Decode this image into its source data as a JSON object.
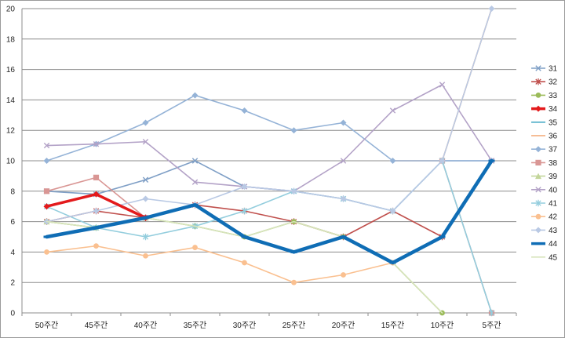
{
  "chart_data": {
    "type": "line",
    "title": "",
    "xlabel": "",
    "ylabel": "",
    "ylim": [
      0,
      20
    ],
    "yticks": [
      0,
      2,
      4,
      6,
      8,
      10,
      12,
      14,
      16,
      18,
      20
    ],
    "grid": true,
    "legend_position": "right",
    "categories": [
      "50주간",
      "45주간",
      "40주간",
      "35주간",
      "30주간",
      "25주간",
      "20주간",
      "15주간",
      "10주간",
      "5주간"
    ],
    "series": [
      {
        "name": "31",
        "color": "#7f9fc6",
        "marker": "x",
        "values": [
          8,
          7.8,
          8.75,
          10,
          8.3,
          8,
          7.5,
          6.7,
          10,
          10
        ]
      },
      {
        "name": "32",
        "color": "#c0504d",
        "marker": "star",
        "values": [
          6,
          6.7,
          6.25,
          7.1,
          6.7,
          6,
          5,
          6.7,
          5,
          null
        ]
      },
      {
        "name": "33",
        "color": "#9bbb59",
        "marker": "circle",
        "values": [
          6,
          5.6,
          6.25,
          5.7,
          5,
          6,
          5,
          3.3,
          0,
          null
        ]
      },
      {
        "name": "34",
        "color": "#e31a1c",
        "marker": "diamond",
        "width": 3.5,
        "values": [
          7,
          7.8,
          6.25,
          null,
          null,
          null,
          null,
          null,
          null,
          null
        ]
      },
      {
        "name": "35",
        "color": "#4bacc6",
        "marker": "none",
        "values": [
          5,
          5.6,
          6.25,
          7.1,
          5,
          4,
          5,
          3.3,
          null,
          null
        ]
      },
      {
        "name": "36",
        "color": "#f3a774",
        "marker": "none",
        "values": [
          null,
          null,
          null,
          null,
          null,
          null,
          null,
          10,
          10,
          20
        ]
      },
      {
        "name": "37",
        "color": "#95b3d7",
        "marker": "diamond",
        "values": [
          10,
          11.1,
          12.5,
          14.3,
          13.3,
          12,
          12.5,
          10,
          10,
          10
        ]
      },
      {
        "name": "38",
        "color": "#d99694",
        "marker": "square",
        "values": [
          8,
          8.9,
          6.25,
          null,
          null,
          null,
          null,
          null,
          10,
          0
        ]
      },
      {
        "name": "39",
        "color": "#c3d69b",
        "marker": "triangle",
        "values": [
          6,
          5.6,
          6.25,
          null,
          null,
          null,
          null,
          null,
          null,
          null
        ]
      },
      {
        "name": "40",
        "color": "#b3a2c7",
        "marker": "x",
        "values": [
          11,
          11.1,
          11.25,
          8.6,
          8.3,
          8,
          10,
          13.3,
          15,
          10
        ]
      },
      {
        "name": "41",
        "color": "#93cddd",
        "marker": "star",
        "values": [
          7,
          5.6,
          5,
          5.7,
          6.7,
          8,
          7.5,
          6.7,
          10,
          0
        ]
      },
      {
        "name": "42",
        "color": "#fac090",
        "marker": "circle",
        "values": [
          4,
          4.4,
          3.75,
          4.3,
          3.3,
          2,
          2.5,
          3.3,
          null,
          null
        ]
      },
      {
        "name": "43",
        "color": "#b9c9e4",
        "marker": "diamond",
        "values": [
          6,
          6.7,
          7.5,
          7.1,
          8.3,
          8,
          7.5,
          6.7,
          10,
          20
        ]
      },
      {
        "name": "44",
        "color": "#0f6db5",
        "marker": "dash",
        "width": 4.5,
        "values": [
          5,
          5.6,
          6.25,
          7.1,
          5,
          4,
          5,
          3.3,
          5,
          10
        ]
      },
      {
        "name": "45",
        "color": "#d7e4bc",
        "marker": "none",
        "values": [
          6,
          5.6,
          6.25,
          5.7,
          5,
          6,
          5,
          3.3,
          0,
          null
        ]
      }
    ]
  }
}
